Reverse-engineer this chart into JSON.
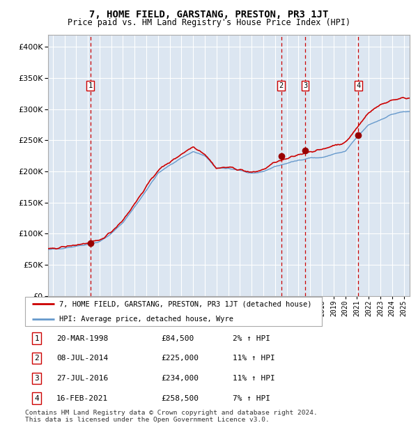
{
  "title": "7, HOME FIELD, GARSTANG, PRESTON, PR3 1JT",
  "subtitle": "Price paid vs. HM Land Registry's House Price Index (HPI)",
  "ylim": [
    0,
    420000
  ],
  "yticks": [
    0,
    50000,
    100000,
    150000,
    200000,
    250000,
    300000,
    350000,
    400000
  ],
  "xlim_start": 1994.6,
  "xlim_end": 2025.5,
  "plot_bg": "#dce6f1",
  "grid_color": "#ffffff",
  "red_line_color": "#cc0000",
  "blue_line_color": "#6699cc",
  "sale_marker_color": "#990000",
  "vline_color": "#cc0000",
  "legend_label_red": "7, HOME FIELD, GARSTANG, PRESTON, PR3 1JT (detached house)",
  "legend_label_blue": "HPI: Average price, detached house, Wyre",
  "footer": "Contains HM Land Registry data © Crown copyright and database right 2024.\nThis data is licensed under the Open Government Licence v3.0.",
  "sales": [
    {
      "num": 1,
      "date": "20-MAR-1998",
      "price": 84500,
      "pct": "2%",
      "x": 1998.22
    },
    {
      "num": 2,
      "date": "08-JUL-2014",
      "price": 225000,
      "pct": "11%",
      "x": 2014.52
    },
    {
      "num": 3,
      "date": "27-JUL-2016",
      "price": 234000,
      "pct": "11%",
      "x": 2016.57
    },
    {
      "num": 4,
      "date": "16-FEB-2021",
      "price": 258500,
      "pct": "7%",
      "x": 2021.12
    }
  ]
}
